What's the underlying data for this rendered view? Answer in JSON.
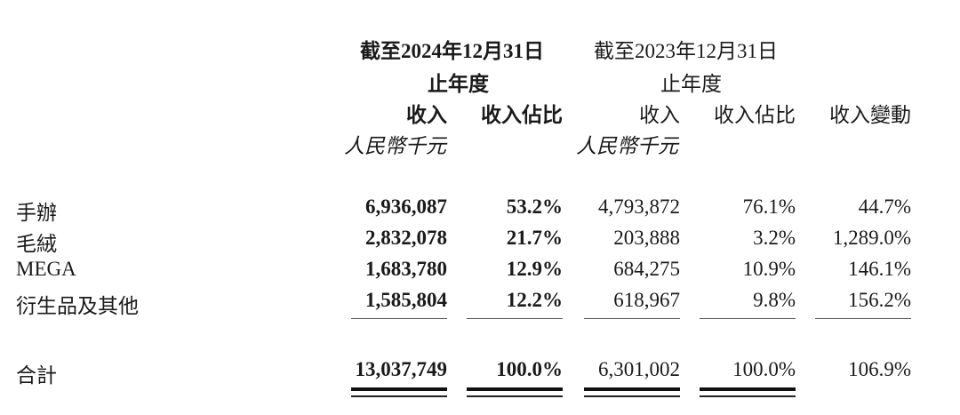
{
  "header": {
    "period_2024": "截至2024年12月31日",
    "period_2024_sub": "止年度",
    "period_2023": "截至2023年12月31日",
    "period_2023_sub": "止年度",
    "columns": [
      "收入",
      "收入佔比",
      "收入",
      "收入佔比",
      "收入變動"
    ],
    "unit_2024": "人民幣千元",
    "unit_2023": "人民幣千元"
  },
  "rows": [
    {
      "label": "手辦",
      "rev_2024": "6,936,087",
      "share_2024": "53.2%",
      "rev_2023": "4,793,872",
      "share_2023": "76.1%",
      "change": "44.7%"
    },
    {
      "label": "毛絨",
      "rev_2024": "2,832,078",
      "share_2024": "21.7%",
      "rev_2023": "203,888",
      "share_2023": "3.2%",
      "change": "1,289.0%"
    },
    {
      "label": "MEGA",
      "rev_2024": "1,683,780",
      "share_2024": "12.9%",
      "rev_2023": "684,275",
      "share_2023": "10.9%",
      "change": "146.1%"
    },
    {
      "label": "衍生品及其他",
      "rev_2024": "1,585,804",
      "share_2024": "12.2%",
      "rev_2023": "618,967",
      "share_2023": "9.8%",
      "change": "156.2%"
    }
  ],
  "total": {
    "label": "合計",
    "rev_2024": "13,037,749",
    "share_2024": "100.0%",
    "rev_2023": "6,301,002",
    "share_2023": "100.0%",
    "change": "106.9%"
  }
}
